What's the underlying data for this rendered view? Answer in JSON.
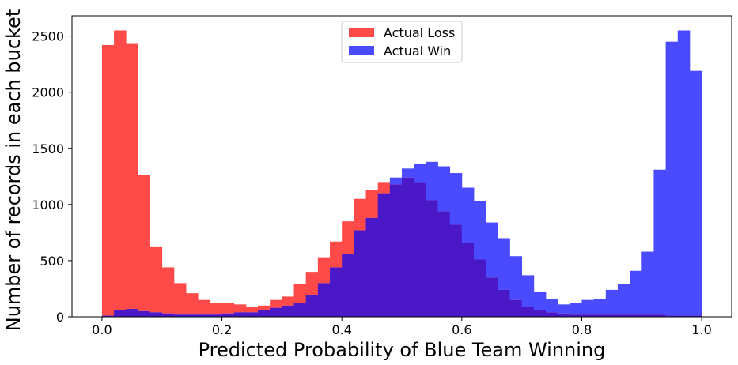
{
  "chart_data": {
    "type": "bar",
    "xlabel": "Predicted Probability of Blue Team Winning",
    "ylabel": "Number of records in each bucket",
    "xlim": [
      -0.05,
      1.05
    ],
    "ylim": [
      0,
      2680
    ],
    "xticks": [
      0.0,
      0.2,
      0.4,
      0.6,
      0.8,
      1.0
    ],
    "xtick_labels": [
      "0.0",
      "0.2",
      "0.4",
      "0.6",
      "0.8",
      "1.0"
    ],
    "yticks": [
      0,
      500,
      1000,
      1500,
      2000,
      2500
    ],
    "ytick_labels": [
      "0",
      "500",
      "1000",
      "1500",
      "2000",
      "2500"
    ],
    "bin_start": 0.0,
    "bin_width": 0.02,
    "legend_position": "top-center",
    "overlap_color": "#4b18c8",
    "series": [
      {
        "name": "Actual Loss",
        "color": "#ff4a4a",
        "values": [
          2420,
          2550,
          2430,
          1260,
          620,
          440,
          300,
          210,
          150,
          120,
          120,
          110,
          90,
          100,
          150,
          180,
          290,
          400,
          530,
          670,
          850,
          1050,
          1130,
          1200,
          1180,
          1240,
          1200,
          1040,
          940,
          820,
          660,
          510,
          350,
          240,
          150,
          90,
          60,
          40,
          30,
          20,
          20,
          20,
          20,
          20,
          20,
          20,
          20,
          10,
          10,
          10
        ]
      },
      {
        "name": "Actual Win",
        "color": "#4a4aff",
        "values": [
          10,
          60,
          70,
          50,
          40,
          30,
          20,
          20,
          20,
          20,
          30,
          40,
          40,
          60,
          80,
          100,
          120,
          190,
          300,
          440,
          560,
          770,
          880,
          1100,
          1240,
          1320,
          1360,
          1380,
          1340,
          1280,
          1150,
          1030,
          840,
          700,
          540,
          370,
          220,
          160,
          110,
          120,
          150,
          160,
          240,
          290,
          410,
          580,
          1310,
          2450,
          2550,
          2190
        ]
      }
    ]
  }
}
